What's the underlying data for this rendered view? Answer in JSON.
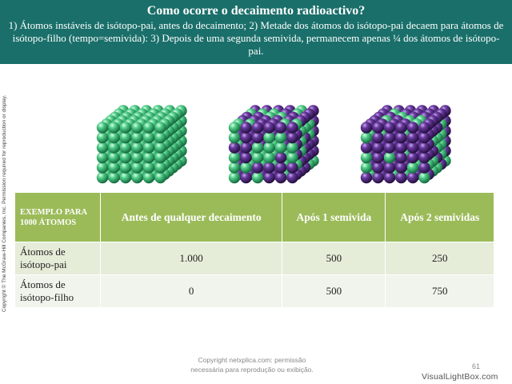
{
  "header": {
    "title": "Como ocorre o decaimento radioactivo?",
    "subtitle": "1) Átomos instáveis de isótopo-pai, antes do decaimento; 2) Metade dos átomos do isótopo-pai decaem para átomos de isótopo-filho (tempo=semivida): 3) Depois de uma segunda semivida, permanecem apenas ¼ dos átomos de isótopo-pai."
  },
  "side_copyright": "Copyright © The McGraw-Hill Companies, Inc. Permission required for reproduction or display.",
  "illustration": {
    "colors": {
      "parent": "#3fbf7a",
      "daughter": "#5b2d8c"
    },
    "cubes": [
      {
        "name": "antes",
        "daughter_fraction": 0
      },
      {
        "name": "1-semivida",
        "daughter_fraction": 0.5
      },
      {
        "name": "2-semividas",
        "daughter_fraction": 0.75
      }
    ]
  },
  "table": {
    "corner_label": "EXEMPLO PARA 1000 ÁTOMOS",
    "columns": [
      "Antes de qualquer decaimento",
      "Após 1 semivida",
      "Após 2 semividas"
    ],
    "rows": [
      {
        "label": "Átomos de isótopo-pai",
        "values": [
          "1.000",
          "500",
          "250"
        ]
      },
      {
        "label": "Átomos de isótopo-filho",
        "values": [
          "0",
          "500",
          "750"
        ]
      }
    ],
    "colors": {
      "header": "#9bbb59",
      "row1": "#e5ecd8",
      "row2": "#f1f4ec"
    }
  },
  "footer": {
    "line1": "Copyright netxplica.com: permissão",
    "line2": "necessária para reprodução ou exibição.",
    "page_number": "61",
    "watermark": "VisualLightBox.com"
  }
}
